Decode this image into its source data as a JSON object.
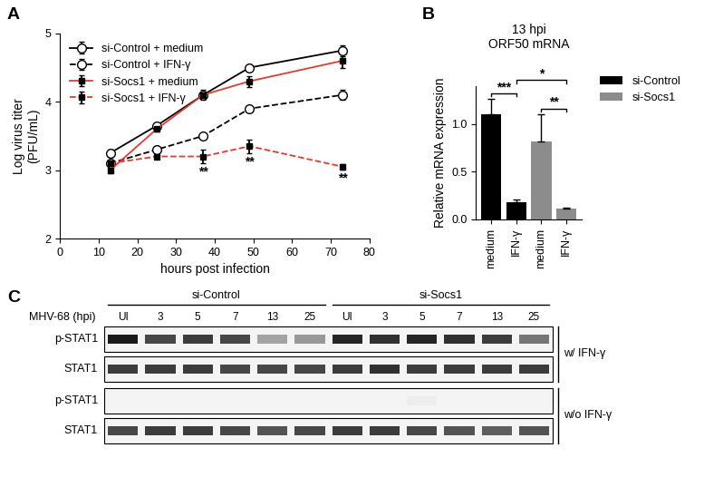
{
  "chart_data": [
    {
      "type": "line",
      "panel": "A",
      "x_label": "hours post infection",
      "y_label": "Log virus titer\n(PFU/mL)",
      "x": [
        13,
        25,
        37,
        49,
        73
      ],
      "xlim": [
        0,
        80
      ],
      "xticks": [
        0,
        10,
        20,
        30,
        40,
        50,
        60,
        70,
        80
      ],
      "ylim": [
        2,
        5
      ],
      "yticks": [
        2,
        3,
        4,
        5
      ],
      "legend": "upper left",
      "series": [
        {
          "name": "si-Control + medium",
          "color": "#000000",
          "marker": "open_circle",
          "line_style": "solid",
          "values": [
            3.25,
            3.65,
            4.1,
            4.5,
            4.75
          ],
          "errors": [
            0.05,
            0.03,
            0.04,
            0.03,
            0.08
          ]
        },
        {
          "name": "si-Control + IFN-γ",
          "color": "#000000",
          "marker": "open_circle",
          "line_style": "dashed",
          "values": [
            3.1,
            3.3,
            3.5,
            3.9,
            4.1
          ],
          "errors": [
            0.04,
            0.03,
            0.03,
            0.03,
            0.07
          ]
        },
        {
          "name": "si-Socs1 + medium",
          "color": "#e8392a",
          "marker": "filled_square",
          "line_style": "solid",
          "values": [
            3.0,
            3.6,
            4.1,
            4.3,
            4.6
          ],
          "errors": [
            0.04,
            0.03,
            0.07,
            0.08,
            0.1
          ]
        },
        {
          "name": "si-Socs1 + IFN-γ",
          "color": "#e8392a",
          "marker": "filled_square",
          "line_style": "dashed",
          "values": [
            3.1,
            3.2,
            3.2,
            3.35,
            3.05
          ],
          "errors": [
            0.1,
            0.03,
            0.1,
            0.1,
            0.04
          ]
        }
      ],
      "annotations": [
        {
          "text": "**",
          "x": 37
        },
        {
          "text": "**",
          "x": 49
        },
        {
          "text": "**",
          "x": 73
        }
      ]
    },
    {
      "type": "bar",
      "panel": "B",
      "title": "13 hpi\nORF50 mRNA",
      "y_label": "Relative mRNA expression",
      "categories": [
        "medium",
        "IFN-γ",
        "medium",
        "IFN-γ"
      ],
      "series": [
        {
          "name": "si-Control",
          "color": "#000000",
          "values": [
            1.1,
            0.18,
            null,
            null
          ],
          "errors": [
            0.16,
            0.03,
            null,
            null
          ]
        },
        {
          "name": "si-Socs1",
          "color": "#8c8c8c",
          "values": [
            null,
            null,
            0.82,
            0.11
          ],
          "errors": [
            null,
            null,
            0.28,
            0.01
          ]
        }
      ],
      "ylim": [
        0,
        1.4
      ],
      "yticks": [
        {
          "value": 0,
          "label": "0.0"
        },
        {
          "value": 0.5,
          "label": "0.5"
        },
        {
          "value": 1,
          "label": "1.0"
        }
      ],
      "legend": "upper left",
      "significance": [
        {
          "from": 0,
          "to": 1,
          "text": "***"
        },
        {
          "from": 2,
          "to": 3,
          "text": "**"
        },
        {
          "from": 1,
          "to": 3,
          "text": "*"
        }
      ]
    }
  ],
  "blot": {
    "panel": "C",
    "treatment_label": "MHV-68 (hpi)",
    "groups": [
      {
        "label": "si-Control",
        "lanes": [
          "UI",
          "3",
          "5",
          "7",
          "13",
          "25"
        ]
      },
      {
        "label": "si-Socs1",
        "lanes": [
          "UI",
          "3",
          "5",
          "7",
          "13",
          "25"
        ]
      }
    ],
    "blocks": [
      {
        "condition": "w/ IFN-γ",
        "rows": [
          {
            "label": "p-STAT1",
            "intensity": [
              1.0,
              0.8,
              0.85,
              0.8,
              0.4,
              0.45,
              0.95,
              0.9,
              0.95,
              0.9,
              0.85,
              0.6
            ]
          },
          {
            "label": "STAT1",
            "intensity": [
              0.85,
              0.85,
              0.85,
              0.8,
              0.8,
              0.8,
              0.85,
              0.9,
              0.85,
              0.85,
              0.85,
              0.85
            ]
          }
        ]
      },
      {
        "condition": "w/o IFN-γ",
        "rows": [
          {
            "label": "p-STAT1",
            "intensity": [
              0.05,
              0.05,
              0.05,
              0.05,
              0.05,
              0.05,
              0.05,
              0.05,
              0.08,
              0.05,
              0.05,
              0.05
            ]
          },
          {
            "label": "STAT1",
            "intensity": [
              0.8,
              0.85,
              0.85,
              0.8,
              0.75,
              0.8,
              0.85,
              0.85,
              0.8,
              0.75,
              0.7,
              0.75
            ]
          }
        ]
      }
    ]
  }
}
